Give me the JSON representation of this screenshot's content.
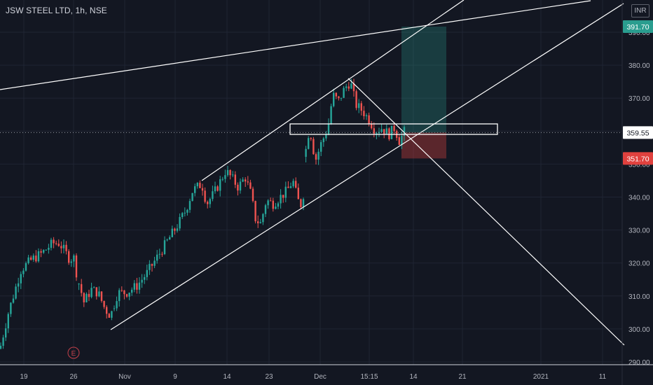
{
  "header": {
    "symbol_line": "JSW STEEL LTD, 1h, NSE",
    "currency": "INR"
  },
  "price_labels": {
    "target": "391.70",
    "current": "359.55",
    "stop": "351.70"
  },
  "colors": {
    "background": "#131722",
    "grid": "#1f2433",
    "up": "#26a69a",
    "down": "#ef5350",
    "target": "#2a9d8f",
    "current": "#ffffff",
    "stop": "#e0413e",
    "lines": "#ffffff"
  },
  "chart_data": {
    "type": "candlestick",
    "ylim": [
      289,
      398
    ],
    "y_ticks": [
      "290.00",
      "300.00",
      "310.00",
      "320.00",
      "330.00",
      "340.00",
      "350.00",
      "360.00",
      "370.00",
      "380.00",
      "390.00"
    ],
    "x_ticks": [
      "19",
      "26",
      "Nov",
      "9",
      "14",
      "23",
      "Dec",
      "15:15",
      "14",
      "21",
      "2021",
      "11"
    ],
    "earnings_marker": "E",
    "trend_path": [
      [
        0,
        294
      ],
      [
        12,
        305
      ],
      [
        30,
        318
      ],
      [
        45,
        321
      ],
      [
        60,
        323
      ],
      [
        75,
        326
      ],
      [
        85,
        326
      ],
      [
        100,
        321
      ],
      [
        105,
        322
      ],
      [
        110,
        316
      ],
      [
        120,
        308
      ],
      [
        130,
        312
      ],
      [
        140,
        311
      ],
      [
        150,
        306
      ],
      [
        158,
        304
      ],
      [
        168,
        311
      ],
      [
        180,
        311
      ],
      [
        195,
        313
      ],
      [
        210,
        317
      ],
      [
        225,
        322
      ],
      [
        240,
        327
      ],
      [
        255,
        332
      ],
      [
        265,
        336
      ],
      [
        275,
        342
      ],
      [
        288,
        344
      ],
      [
        295,
        338
      ],
      [
        305,
        341
      ],
      [
        315,
        345
      ],
      [
        322,
        348
      ],
      [
        330,
        346
      ],
      [
        340,
        343
      ],
      [
        350,
        346
      ],
      [
        358,
        341
      ],
      [
        365,
        333
      ],
      [
        372,
        332
      ],
      [
        380,
        339
      ],
      [
        390,
        338
      ],
      [
        400,
        340
      ],
      [
        410,
        342
      ],
      [
        418,
        345
      ],
      [
        425,
        339
      ],
      [
        432,
        337
      ],
      [
        437,
        356
      ],
      [
        442,
        361
      ],
      [
        450,
        351
      ],
      [
        458,
        356
      ],
      [
        468,
        361
      ],
      [
        475,
        371
      ],
      [
        483,
        369
      ],
      [
        492,
        373
      ],
      [
        500,
        375
      ],
      [
        508,
        368
      ],
      [
        518,
        366
      ],
      [
        528,
        363
      ],
      [
        536,
        360
      ],
      [
        545,
        361
      ],
      [
        555,
        359
      ],
      [
        563,
        361
      ],
      [
        570,
        357
      ],
      [
        580,
        361
      ]
    ],
    "annotations": {
      "long_position": {
        "entry": 359.55,
        "target": 391.7,
        "stop": 351.7
      },
      "resistance_box": {
        "high": 361.5,
        "low": 359.3
      }
    }
  }
}
